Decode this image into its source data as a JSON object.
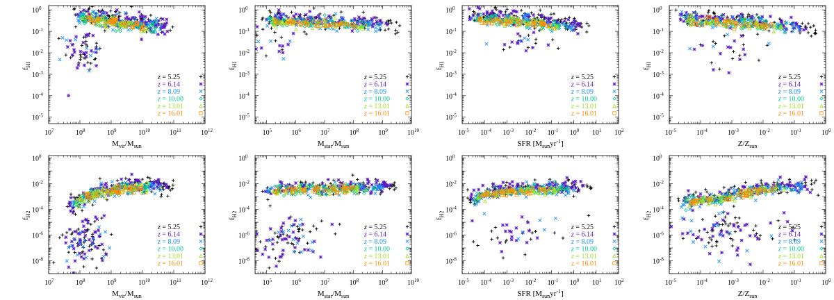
{
  "figure": {
    "legend_location": "lower-right",
    "redshift_symbols": [
      {
        "z": "5.25",
        "color": "#000000",
        "marker": "plus"
      },
      {
        "z": "6.14",
        "color": "#5b18c8",
        "marker": "asterisk"
      },
      {
        "z": "8.09",
        "color": "#1890ff",
        "marker": "cross"
      },
      {
        "z": "10.00",
        "color": "#00c890",
        "marker": "diamond"
      },
      {
        "z": "13.01",
        "color": "#a0e020",
        "marker": "triangle"
      },
      {
        "z": "16.01",
        "color": "#ff8c00",
        "marker": "square"
      }
    ]
  },
  "chart_data": [
    {
      "type": "scatter",
      "row": "HI",
      "ylabel": "f",
      "ylabel_sub": "HI",
      "xlabel": "M",
      "xlabel_sub": "vir",
      "xlabel_rest": "/M",
      "xlabel_rest_sub": "sun",
      "xlabel_tail": "",
      "xlim_log10": [
        7,
        12
      ],
      "xtick_exponents": [
        "7",
        "8",
        "9",
        "10",
        "11",
        "12"
      ],
      "ylim_log10": [
        -5.3,
        0.2
      ],
      "ytick_exponents": [
        "-5",
        "-4",
        "-3",
        "-2",
        "-1",
        "0"
      ],
      "cloud": {
        "trend": [
          [
            7.8,
            -0.3
          ],
          [
            8.5,
            -0.35
          ],
          [
            9.5,
            -0.6
          ],
          [
            10.5,
            -0.8
          ],
          [
            11.0,
            -0.95
          ]
        ],
        "spread": 0.22,
        "n": 420
      },
      "outliers": {
        "center": [
          8.1,
          -1.9
        ],
        "sx": 0.3,
        "sy": 0.5,
        "n": 60
      }
    },
    {
      "type": "scatter",
      "row": "HI",
      "ylabel": "f",
      "ylabel_sub": "HI",
      "xlabel": "M",
      "xlabel_sub": "star",
      "xlabel_rest": "/M",
      "xlabel_rest_sub": "sun",
      "xlabel_tail": "",
      "xlim_log10": [
        4.6,
        10
      ],
      "xtick_exponents": [
        "5",
        "6",
        "7",
        "8",
        "9",
        "10"
      ],
      "ylim_log10": [
        -5.3,
        0.2
      ],
      "ytick_exponents": [
        "-5",
        "-4",
        "-3",
        "-2",
        "-1",
        "0"
      ],
      "cloud": {
        "trend": [
          [
            4.8,
            -0.45
          ],
          [
            6.0,
            -0.5
          ],
          [
            7.5,
            -0.6
          ],
          [
            9.0,
            -0.75
          ],
          [
            9.6,
            -0.9
          ]
        ],
        "spread": 0.18,
        "n": 420
      },
      "outliers": {
        "center": [
          5.5,
          -1.5
        ],
        "sx": 0.5,
        "sy": 0.4,
        "n": 25
      }
    },
    {
      "type": "scatter",
      "row": "HI",
      "ylabel": "f",
      "ylabel_sub": "HI",
      "xlabel": "SFR [M",
      "xlabel_sub": "sun",
      "xlabel_rest": "yr",
      "xlabel_rest_sub": "",
      "xlabel_tail": "-1",
      "xlim_log10": [
        -5,
        2
      ],
      "xtick_exponents": [
        "-5",
        "-4",
        "-3",
        "-2",
        "-1",
        "0",
        "1",
        "2"
      ],
      "ylim_log10": [
        -5.3,
        0.2
      ],
      "ytick_exponents": [
        "-5",
        "-4",
        "-3",
        "-2",
        "-1",
        "0"
      ],
      "cloud": {
        "trend": [
          [
            -4.8,
            -0.35
          ],
          [
            -3.5,
            -0.4
          ],
          [
            -2.0,
            -0.5
          ],
          [
            -0.5,
            -0.7
          ],
          [
            0.8,
            -0.9
          ]
        ],
        "spread": 0.18,
        "n": 420
      },
      "outliers": {
        "center": [
          -2.5,
          -1.6
        ],
        "sx": 0.8,
        "sy": 0.3,
        "n": 25
      }
    },
    {
      "type": "scatter",
      "row": "HI",
      "ylabel": "f",
      "ylabel_sub": "HI",
      "xlabel": "Z/Z",
      "xlabel_sub": "sun",
      "xlabel_rest": "",
      "xlabel_rest_sub": "",
      "xlabel_tail": "",
      "xlim_log10": [
        -5,
        0
      ],
      "xtick_exponents": [
        "-5",
        "-4",
        "-3",
        "-2",
        "-1",
        "0"
      ],
      "ylim_log10": [
        -5.3,
        0.2
      ],
      "ytick_exponents": [
        "-5",
        "-4",
        "-3",
        "-2",
        "-1",
        "0"
      ],
      "cloud": {
        "trend": [
          [
            -4.8,
            -0.4
          ],
          [
            -3.5,
            -0.5
          ],
          [
            -2.3,
            -0.6
          ],
          [
            -1.0,
            -0.8
          ],
          [
            -0.3,
            -1.1
          ]
        ],
        "spread": 0.2,
        "n": 420
      },
      "outliers": {
        "center": [
          -3.0,
          -1.8
        ],
        "sx": 0.7,
        "sy": 0.5,
        "n": 30
      }
    },
    {
      "type": "scatter",
      "row": "H2",
      "ylabel": "f",
      "ylabel_sub": "H2",
      "xlabel": "M",
      "xlabel_sub": "vir",
      "xlabel_rest": "/M",
      "xlabel_rest_sub": "sun",
      "xlabel_tail": "",
      "xlim_log10": [
        7,
        12
      ],
      "xtick_exponents": [
        "7",
        "8",
        "9",
        "10",
        "11",
        "12"
      ],
      "ylim_log10": [
        -9,
        0.2
      ],
      "ytick_exponents": [
        "-8",
        "-6",
        "-4",
        "-2",
        "0"
      ],
      "cloud": {
        "trend": [
          [
            7.6,
            -4.0
          ],
          [
            8.0,
            -3.2
          ],
          [
            8.5,
            -2.7
          ],
          [
            9.5,
            -2.3
          ],
          [
            10.5,
            -2.2
          ],
          [
            11.0,
            -2.3
          ]
        ],
        "spread": 0.35,
        "n": 420
      },
      "outliers": {
        "center": [
          8.2,
          -6.3
        ],
        "sx": 0.35,
        "sy": 1.0,
        "n": 110
      }
    },
    {
      "type": "scatter",
      "row": "H2",
      "ylabel": "f",
      "ylabel_sub": "H2",
      "xlabel": "M",
      "xlabel_sub": "star",
      "xlabel_rest": "/M",
      "xlabel_rest_sub": "sun",
      "xlabel_tail": "",
      "xlim_log10": [
        4.6,
        10
      ],
      "xtick_exponents": [
        "5",
        "6",
        "7",
        "8",
        "9",
        "10"
      ],
      "ylim_log10": [
        -9,
        0.2
      ],
      "ytick_exponents": [
        "-8",
        "-6",
        "-4",
        "-2",
        "0"
      ],
      "cloud": {
        "trend": [
          [
            4.8,
            -2.6
          ],
          [
            6.0,
            -2.4
          ],
          [
            7.5,
            -2.3
          ],
          [
            9.0,
            -2.3
          ],
          [
            9.6,
            -2.4
          ]
        ],
        "spread": 0.3,
        "n": 420
      },
      "outliers": {
        "center": [
          5.8,
          -6.2
        ],
        "sx": 0.6,
        "sy": 0.9,
        "n": 90
      }
    },
    {
      "type": "scatter",
      "row": "H2",
      "ylabel": "f",
      "ylabel_sub": "H2",
      "xlabel": "SFR [M",
      "xlabel_sub": "sun",
      "xlabel_rest": "yr",
      "xlabel_rest_sub": "",
      "xlabel_tail": "-1",
      "xlim_log10": [
        -5,
        2
      ],
      "xtick_exponents": [
        "-5",
        "-4",
        "-3",
        "-2",
        "-1",
        "0",
        "1",
        "2"
      ],
      "ylim_log10": [
        -9,
        0.2
      ],
      "ytick_exponents": [
        "-8",
        "-6",
        "-4",
        "-2",
        "0"
      ],
      "cloud": {
        "trend": [
          [
            -4.8,
            -3.5
          ],
          [
            -4.0,
            -2.8
          ],
          [
            -3.0,
            -2.5
          ],
          [
            -1.5,
            -2.4
          ],
          [
            0.0,
            -2.4
          ],
          [
            0.8,
            -2.5
          ]
        ],
        "spread": 0.3,
        "n": 420
      },
      "outliers": {
        "center": [
          -2.6,
          -6.0
        ],
        "sx": 0.9,
        "sy": 0.7,
        "n": 45
      }
    },
    {
      "type": "scatter",
      "row": "H2",
      "ylabel": "f",
      "ylabel_sub": "H2",
      "xlabel": "Z/Z",
      "xlabel_sub": "sun",
      "xlabel_rest": "",
      "xlabel_rest_sub": "",
      "xlabel_tail": "",
      "xlim_log10": [
        -5,
        0
      ],
      "xtick_exponents": [
        "-5",
        "-4",
        "-3",
        "-2",
        "-1",
        "0"
      ],
      "ylim_log10": [
        -9,
        0.2
      ],
      "ytick_exponents": [
        "-8",
        "-6",
        "-4",
        "-2",
        "0"
      ],
      "cloud": {
        "trend": [
          [
            -4.8,
            -3.3
          ],
          [
            -3.5,
            -3.2
          ],
          [
            -2.5,
            -2.6
          ],
          [
            -1.5,
            -2.3
          ],
          [
            -0.5,
            -2.2
          ],
          [
            -0.2,
            -2.3
          ]
        ],
        "spread": 0.3,
        "n": 420
      },
      "outliers": {
        "center": [
          -3.2,
          -5.8
        ],
        "sx": 0.9,
        "sy": 0.8,
        "n": 100
      }
    }
  ]
}
